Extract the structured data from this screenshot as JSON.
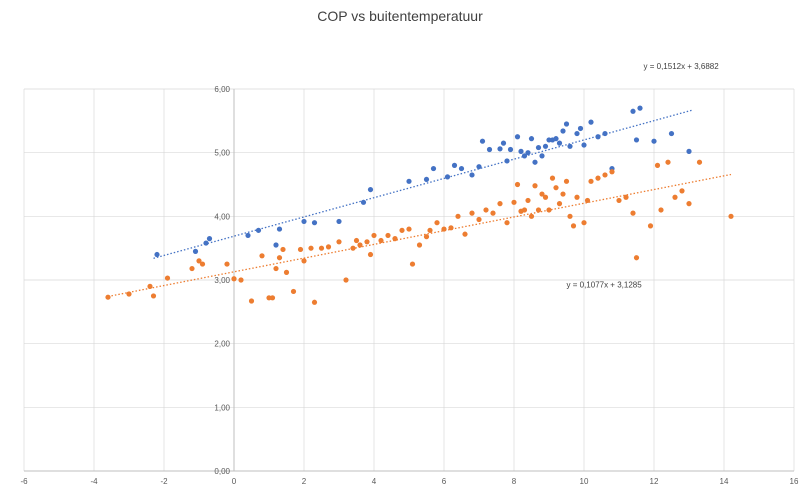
{
  "chart_data": {
    "type": "scatter",
    "title": "COP vs buitentemperatuur",
    "xlim": [
      -6,
      16
    ],
    "ylim": [
      0,
      6
    ],
    "x_ticks": [
      "-6",
      "-4",
      "-2",
      "0",
      "2",
      "4",
      "6",
      "8",
      "10",
      "12",
      "14",
      "16"
    ],
    "y_ticks": [
      "0,00",
      "1,00",
      "2,00",
      "3,00",
      "4,00",
      "5,00",
      "6,00"
    ],
    "grid": true,
    "series": [
      {
        "color": "#4472C4",
        "trendline": {
          "slope": 0.1512,
          "intercept": 3.6882,
          "label": "y = 0,1512x + 3,6882",
          "x_range": [
            -2.3,
            13.1
          ]
        },
        "x": [
          -2.2,
          -1.1,
          -0.8,
          -0.7,
          0.4,
          0.7,
          1.2,
          1.3,
          2.0,
          2.3,
          3.0,
          3.7,
          3.9,
          5.0,
          5.5,
          5.7,
          6.1,
          6.3,
          6.5,
          6.8,
          7.0,
          7.1,
          7.3,
          7.6,
          7.7,
          7.8,
          7.9,
          8.1,
          8.2,
          8.3,
          8.4,
          8.5,
          8.6,
          8.7,
          8.8,
          8.9,
          9.0,
          9.1,
          9.2,
          9.3,
          9.4,
          9.5,
          9.6,
          9.8,
          9.9,
          10.0,
          10.2,
          10.4,
          10.6,
          10.8,
          11.4,
          11.5,
          11.6,
          12.0,
          12.5,
          13.0
        ],
        "y": [
          3.4,
          3.45,
          3.58,
          3.65,
          3.7,
          3.78,
          3.55,
          3.8,
          3.92,
          3.9,
          3.92,
          4.22,
          4.42,
          4.55,
          4.58,
          4.75,
          4.62,
          4.8,
          4.75,
          4.65,
          4.78,
          5.18,
          5.05,
          5.06,
          5.15,
          4.87,
          5.05,
          5.25,
          5.02,
          4.95,
          5.0,
          5.22,
          4.85,
          5.08,
          4.95,
          5.1,
          5.2,
          5.2,
          5.22,
          5.15,
          5.34,
          5.45,
          5.1,
          5.3,
          5.38,
          5.12,
          5.48,
          5.25,
          5.3,
          4.75,
          5.65,
          5.2,
          5.7,
          5.18,
          5.3,
          5.02
        ]
      },
      {
        "color": "#ED7D31",
        "trendline": {
          "slope": 0.1077,
          "intercept": 3.1285,
          "label": "y = 0,1077x + 3,1285",
          "x_range": [
            -3.6,
            14.2
          ]
        },
        "x": [
          -3.6,
          -3.0,
          -2.4,
          -2.3,
          -1.9,
          -1.2,
          -1.0,
          -0.9,
          -0.2,
          0.0,
          0.2,
          0.5,
          0.8,
          1.0,
          1.1,
          1.2,
          1.3,
          1.4,
          1.5,
          1.7,
          1.9,
          2.0,
          2.2,
          2.3,
          2.5,
          2.7,
          3.0,
          3.2,
          3.4,
          3.5,
          3.6,
          3.8,
          3.9,
          4.0,
          4.2,
          4.4,
          4.6,
          4.8,
          5.0,
          5.1,
          5.3,
          5.5,
          5.6,
          5.8,
          6.0,
          6.2,
          6.4,
          6.6,
          6.8,
          7.0,
          7.2,
          7.4,
          7.6,
          7.8,
          8.0,
          8.1,
          8.2,
          8.3,
          8.4,
          8.5,
          8.6,
          8.7,
          8.8,
          8.9,
          9.0,
          9.1,
          9.2,
          9.3,
          9.4,
          9.5,
          9.6,
          9.7,
          9.8,
          10.0,
          10.1,
          10.2,
          10.4,
          10.6,
          10.8,
          11.0,
          11.2,
          11.4,
          11.5,
          11.9,
          12.1,
          12.2,
          12.4,
          12.6,
          12.8,
          13.0,
          13.3,
          14.2
        ],
        "y": [
          2.73,
          2.78,
          2.9,
          2.75,
          3.03,
          3.18,
          3.3,
          3.25,
          3.25,
          3.02,
          3.0,
          2.67,
          3.38,
          2.72,
          2.72,
          3.18,
          3.35,
          3.48,
          3.12,
          2.82,
          3.48,
          3.3,
          3.5,
          2.65,
          3.5,
          3.52,
          3.6,
          3.0,
          3.5,
          3.62,
          3.55,
          3.6,
          3.4,
          3.7,
          3.62,
          3.7,
          3.65,
          3.78,
          3.8,
          3.25,
          3.55,
          3.68,
          3.78,
          3.9,
          3.8,
          3.82,
          4.0,
          3.72,
          4.05,
          3.95,
          4.1,
          4.05,
          4.2,
          3.9,
          4.22,
          4.5,
          4.08,
          4.1,
          4.25,
          4.0,
          4.48,
          4.1,
          4.35,
          4.3,
          4.1,
          4.6,
          4.45,
          4.2,
          4.35,
          4.55,
          4.0,
          3.85,
          4.3,
          3.9,
          4.25,
          4.55,
          4.6,
          4.65,
          4.7,
          4.25,
          4.3,
          4.05,
          3.35,
          3.85,
          4.8,
          4.1,
          4.85,
          4.3,
          4.4,
          4.2,
          4.85,
          4.0
        ]
      }
    ]
  }
}
